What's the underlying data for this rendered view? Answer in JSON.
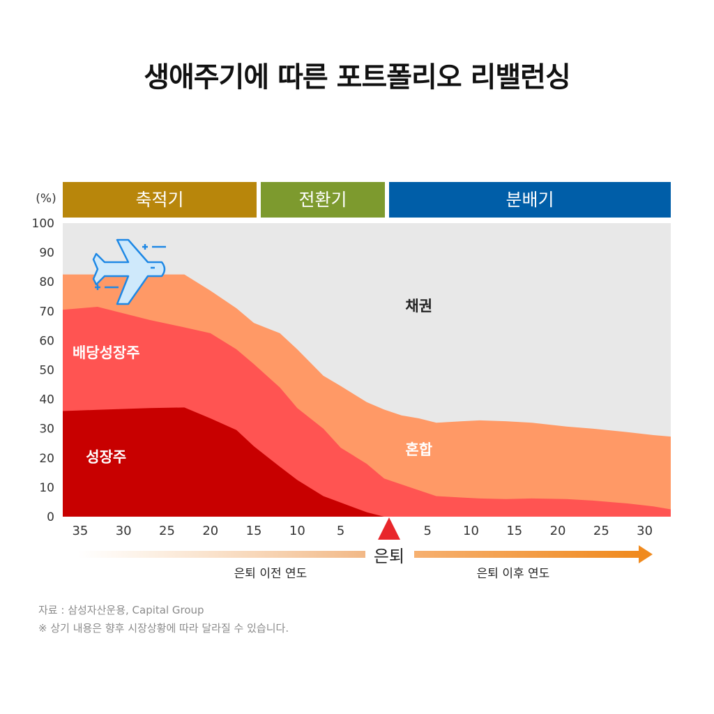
{
  "title": "생애주기에 따른 포트폴리오 리밸런싱",
  "ylabel": "(%)",
  "phases": [
    {
      "label": "축적기",
      "color": "#B8860B"
    },
    {
      "label": "전환기",
      "color": "#7D9A2E"
    },
    {
      "label": "분배기",
      "color": "#005EA8"
    }
  ],
  "retire_label": "은퇴",
  "before_label": "은퇴 이전 연도",
  "after_label": "은퇴 이후 연도",
  "source": "자료 : 삼성자산운용, Capital Group",
  "note": "※ 상기 내용은 향후 시장상황에 따라 달라질 수 있습니다.",
  "chart_data": {
    "type": "area",
    "stacked": true,
    "ylim": [
      0,
      100
    ],
    "y_ticks": [
      "0",
      "10",
      "20",
      "30",
      "40",
      "50",
      "60",
      "70",
      "80",
      "90",
      "100"
    ],
    "x_ticks": [
      "35",
      "30",
      "25",
      "20",
      "15",
      "10",
      "5",
      "",
      "5",
      "10",
      "15",
      "20",
      "25",
      "30"
    ],
    "xlim": [
      -37,
      33
    ],
    "x_label_values": [
      -35,
      -30,
      -25,
      -20,
      -15,
      -10,
      -5,
      5,
      10,
      15,
      20,
      25,
      30
    ],
    "x_label_texts": [
      "35",
      "30",
      "25",
      "20",
      "15",
      "10",
      "5",
      "5",
      "10",
      "15",
      "20",
      "25",
      "30"
    ],
    "x": [
      -37,
      -33,
      -27,
      -23,
      -20,
      -17,
      -15,
      -12,
      -10,
      -7,
      -5,
      -2,
      0,
      2,
      4,
      6,
      9,
      11,
      14,
      17,
      21,
      24,
      28,
      31,
      33
    ],
    "series": [
      {
        "name": "성장주",
        "color": "#C80000",
        "label_color": "#ffffff",
        "top": [
          36,
          36.4,
          37,
          37.2,
          33.5,
          29.5,
          24,
          17,
          12.5,
          7,
          4.8,
          1.5,
          0,
          0,
          0,
          0,
          0,
          0,
          0,
          0,
          0,
          0,
          0,
          0,
          0
        ]
      },
      {
        "name": "배당성장주",
        "color": "#FF5452",
        "label_color": "#ffffff",
        "top": [
          70.5,
          71.5,
          67,
          64.5,
          62.5,
          57,
          52,
          44,
          37,
          30,
          23.5,
          18,
          13,
          11,
          9,
          7,
          6.5,
          6.2,
          6,
          6.2,
          6,
          5.5,
          4.5,
          3.5,
          2.5
        ]
      },
      {
        "name": "혼합",
        "color": "#FF9966",
        "label_color": "#ffffff",
        "top": [
          82.5,
          82.5,
          82.5,
          82.5,
          77,
          71,
          66,
          62.5,
          57,
          48,
          44.5,
          39,
          36.5,
          34.5,
          33.5,
          32,
          32.5,
          32.8,
          32.5,
          32,
          30.7,
          30,
          28.8,
          27.8,
          27.3
        ]
      },
      {
        "name": "채권",
        "color": "#E8E8E8",
        "label_color": "#222222",
        "top": [
          100,
          100,
          100,
          100,
          100,
          100,
          100,
          100,
          100,
          100,
          100,
          100,
          100,
          100,
          100,
          100,
          100,
          100,
          100,
          100,
          100,
          100,
          100,
          100,
          100
        ]
      }
    ],
    "series_labels": [
      {
        "name": "성장주",
        "x": -32,
        "y": 20.5
      },
      {
        "name": "배당성장주",
        "x": -32,
        "y": 56
      },
      {
        "name": "혼합",
        "x": 4,
        "y": 23
      },
      {
        "name": "채권",
        "x": 4,
        "y": 72
      }
    ]
  }
}
